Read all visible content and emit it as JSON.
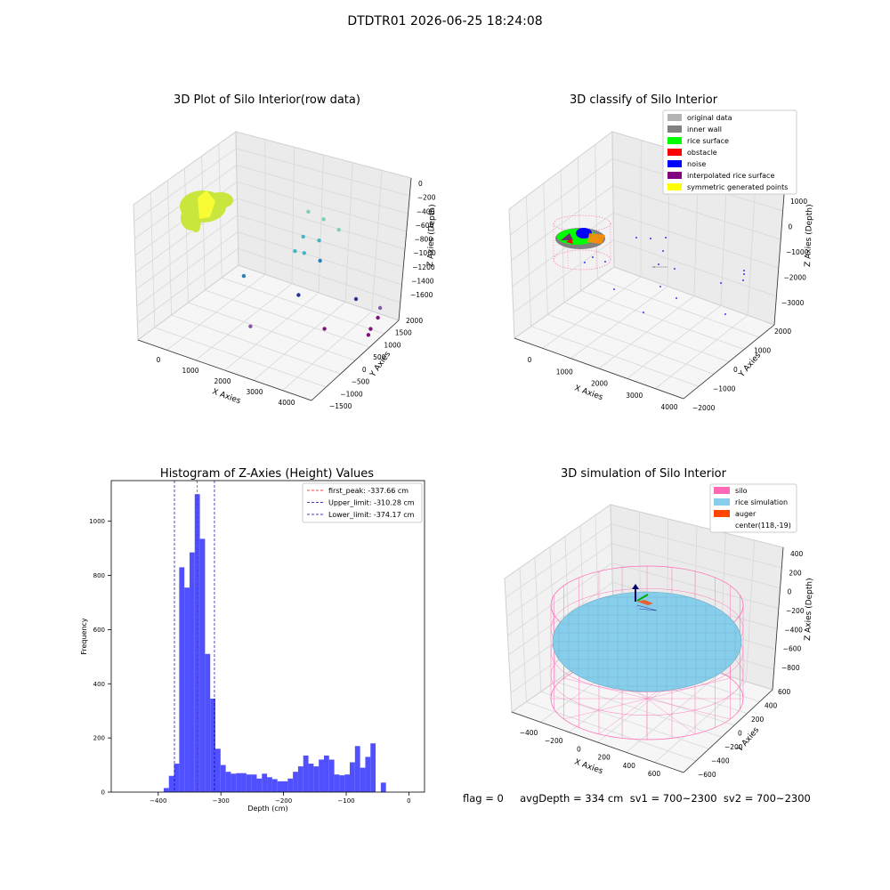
{
  "figure": {
    "suptitle": "DTDTR01 2026-06-25 18:24:08",
    "status_line": "flag = 0     avgDepth = 334 cm  sv1 = 700~2300  sv2 = 700~2300"
  },
  "colors": {
    "raw_surface": "#c8e63c",
    "original_data": "#b3b3b3",
    "inner_wall": "#808080",
    "rice_surface": "#00ff00",
    "obstacle": "#ff0000",
    "noise": "#0000ff",
    "interpolated": "#800080",
    "symmetric": "#ffff00",
    "silo": "#ff69b4",
    "rice_sim": "#87ceeb",
    "auger": "#ff4500",
    "hist_bar": "#5050ff",
    "peak_line": "#ff0000",
    "limit_line": "#0000aa"
  },
  "chart_data": [
    {
      "type": "scatter",
      "title": "3D Plot of Silo Interior(row data)",
      "xlabel": "X Axies",
      "ylabel": "Y Axies",
      "zlabel": "Z Axies (Depth)",
      "x_ticks": [
        "0",
        "1000",
        "2000",
        "3000",
        "4000"
      ],
      "y_ticks": [
        "−1500",
        "−1000",
        "−500",
        "0",
        "500",
        "1000",
        "1500",
        "2000"
      ],
      "z_ticks": [
        "0",
        "−200",
        "−400",
        "−600",
        "−800",
        "−1000",
        "−1200",
        "−1400",
        "−1600"
      ],
      "surface_cluster": {
        "x": [
          0,
          900
        ],
        "y": [
          -1000,
          0
        ],
        "z": [
          -400,
          -50
        ]
      },
      "points": [
        {
          "x": 1900,
          "y": 2300,
          "z": -700
        },
        {
          "x": 2300,
          "y": 2300,
          "z": -730
        },
        {
          "x": 2700,
          "y": 2300,
          "z": -800
        },
        {
          "x": 2000,
          "y": 1900,
          "z": -900
        },
        {
          "x": 2300,
          "y": 2100,
          "z": -950
        },
        {
          "x": 1900,
          "y": 1700,
          "z": -1050
        },
        {
          "x": 2200,
          "y": 1600,
          "z": -1000
        },
        {
          "x": 2500,
          "y": 1800,
          "z": -1100
        },
        {
          "x": 1200,
          "y": 600,
          "z": -1200
        },
        {
          "x": 2400,
          "y": 1000,
          "z": -1350
        },
        {
          "x": 3500,
          "y": 1700,
          "z": -1400
        },
        {
          "x": 3900,
          "y": 2100,
          "z": -1550
        },
        {
          "x": 3900,
          "y": 2000,
          "z": -1650
        },
        {
          "x": 1900,
          "y": -300,
          "z": -1500
        },
        {
          "x": 3200,
          "y": 800,
          "z": -1600
        },
        {
          "x": 4000,
          "y": 1500,
          "z": -1650
        },
        {
          "x": 4000,
          "y": 1400,
          "z": -1700
        }
      ]
    },
    {
      "type": "scatter",
      "title": "3D classify of Silo Interior",
      "xlabel": "X Axies",
      "ylabel": "Y Axies",
      "zlabel": "Z Axies (Depth)",
      "x_ticks": [
        "0",
        "1000",
        "2000",
        "3000",
        "4000"
      ],
      "y_ticks": [
        "−2000",
        "−1000",
        "0",
        "1000",
        "2000"
      ],
      "z_ticks": [
        "1000",
        "0",
        "−1000",
        "−2000",
        "−3000"
      ],
      "legend": [
        "original data",
        "inner wall",
        "rice surface",
        "obstacle",
        "noise",
        "interpolated rice surface",
        "symmetric generated points"
      ],
      "legend_placement": "top-right"
    },
    {
      "type": "bar",
      "title": "Histogram of Z-Axies (Height) Values",
      "xlabel": "Depth (cm)",
      "ylabel": "Frequency",
      "xlim": [
        -475,
        25
      ],
      "ylim": [
        0,
        1150
      ],
      "x_ticks": [
        -400,
        -300,
        -200,
        -100,
        0
      ],
      "y_ticks": [
        0,
        200,
        400,
        600,
        800,
        1000
      ],
      "bin_width": 8.25,
      "bin_start": -391.3,
      "values": [
        15,
        60,
        105,
        830,
        755,
        885,
        1100,
        935,
        510,
        345,
        160,
        100,
        75,
        68,
        70,
        70,
        65,
        65,
        50,
        68,
        55,
        48,
        40,
        40,
        50,
        75,
        95,
        135,
        105,
        95,
        120,
        135,
        120,
        65,
        62,
        65,
        110,
        170,
        90,
        130,
        180,
        0,
        35
      ],
      "lines": [
        {
          "label": "first_peak: -337.66 cm",
          "value": -337.66,
          "style": "dashed",
          "color": "#ff0000"
        },
        {
          "label": "Upper_limit: -310.28 cm",
          "value": -310.28,
          "style": "dashed",
          "color": "#0000aa"
        },
        {
          "label": "Lower_limit: -374.17 cm",
          "value": -374.17,
          "style": "dashed",
          "color": "#0000aa"
        }
      ],
      "legend_placement": "top-right",
      "grid": false
    },
    {
      "type": "scatter",
      "title": "3D simulation of Silo Interior",
      "xlabel": "X Axies",
      "ylabel": "Y Axies",
      "zlabel": "Z Axies (Depth)",
      "x_ticks": [
        "−400",
        "−200",
        "0",
        "200",
        "400",
        "600"
      ],
      "y_ticks": [
        "−600",
        "−400",
        "−200",
        "0",
        "200",
        "400",
        "600"
      ],
      "z_ticks": [
        "400",
        "200",
        "0",
        "−200",
        "−400",
        "−600",
        "−800"
      ],
      "legend": [
        "silo",
        "rice simulation",
        "auger",
        "center(118,-19)"
      ],
      "legend_placement": "top-right"
    }
  ]
}
